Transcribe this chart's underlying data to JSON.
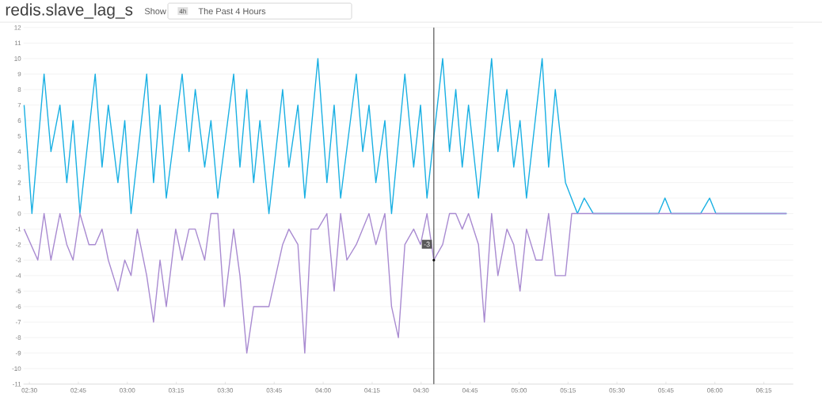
{
  "chart_data": {
    "type": "line",
    "title": "redis.slave_lag_s",
    "annotations": [
      "Show",
      "4h",
      "The Past 4 Hours",
      {
        "text": "-3",
        "x": 4.565,
        "y": -3
      }
    ],
    "xlim": [
      2.47,
      6.4
    ],
    "ylim": [
      -11,
      12
    ],
    "xticks": [
      {
        "value": 2.5,
        "label": "02:30"
      },
      {
        "value": 2.75,
        "label": "02:45"
      },
      {
        "value": 3.0,
        "label": "03:00"
      },
      {
        "value": 3.25,
        "label": "03:15"
      },
      {
        "value": 3.5,
        "label": "03:30"
      },
      {
        "value": 3.75,
        "label": "03:45"
      },
      {
        "value": 4.0,
        "label": "04:00"
      },
      {
        "value": 4.25,
        "label": "04:15"
      },
      {
        "value": 4.5,
        "label": "04:30"
      },
      {
        "value": 4.75,
        "label": "04:45"
      },
      {
        "value": 5.0,
        "label": "05:00"
      },
      {
        "value": 5.25,
        "label": "05:15"
      },
      {
        "value": 5.5,
        "label": "05:30"
      },
      {
        "value": 5.75,
        "label": "05:45"
      },
      {
        "value": 6.0,
        "label": "06:00"
      },
      {
        "value": 6.25,
        "label": "06:15"
      }
    ],
    "yticks": [
      -11,
      -10,
      -9,
      -8,
      -7,
      -6,
      -5,
      -4,
      -3,
      -2,
      -1,
      0,
      1,
      2,
      3,
      4,
      5,
      6,
      7,
      8,
      9,
      10,
      11,
      12
    ],
    "grid": "y",
    "marker": "none",
    "line_style": "solid",
    "ref_lines": [
      {
        "axis": "x",
        "value": 4.565,
        "color": "#333333"
      }
    ],
    "series": [
      {
        "color": "#1ab0e3",
        "x": [
          2.473,
          2.513,
          2.575,
          2.61,
          2.656,
          2.691,
          2.723,
          2.758,
          2.836,
          2.871,
          2.903,
          2.952,
          2.987,
          3.019,
          3.099,
          3.134,
          3.167,
          3.199,
          3.28,
          3.315,
          3.347,
          3.395,
          3.427,
          3.462,
          3.543,
          3.575,
          3.61,
          3.645,
          3.677,
          3.723,
          3.793,
          3.825,
          3.871,
          3.906,
          3.973,
          4.019,
          4.056,
          4.089,
          4.169,
          4.202,
          4.234,
          4.269,
          4.315,
          4.349,
          4.417,
          4.462,
          4.497,
          4.53,
          4.61,
          4.645,
          4.677,
          4.71,
          4.742,
          4.793,
          4.86,
          4.892,
          4.938,
          4.973,
          5.005,
          5.038,
          5.118,
          5.151,
          5.185,
          5.237,
          5.298,
          5.333,
          5.379,
          5.712,
          5.745,
          5.777,
          5.927,
          5.973,
          6.005,
          6.366
        ],
        "values": [
          7,
          0,
          9,
          4,
          7,
          2,
          6,
          0,
          9,
          3,
          7,
          2,
          6,
          0,
          9,
          2,
          7,
          1,
          9,
          4,
          8,
          3,
          6,
          1,
          9,
          3,
          8,
          2,
          6,
          0,
          8,
          3,
          7,
          1,
          10,
          2,
          7,
          1,
          9,
          4,
          7,
          2,
          6,
          0,
          9,
          3,
          7,
          1,
          10,
          4,
          8,
          3,
          7,
          1,
          10,
          4,
          8,
          3,
          6,
          1,
          10,
          3,
          8,
          2,
          0,
          1,
          0,
          0,
          1,
          0,
          0,
          1,
          0,
          0
        ]
      },
      {
        "color": "#a98bd1",
        "x": [
          2.473,
          2.543,
          2.575,
          2.61,
          2.656,
          2.691,
          2.723,
          2.758,
          2.804,
          2.836,
          2.871,
          2.903,
          2.952,
          2.987,
          3.019,
          3.051,
          3.099,
          3.134,
          3.167,
          3.199,
          3.247,
          3.28,
          3.315,
          3.347,
          3.395,
          3.427,
          3.462,
          3.495,
          3.543,
          3.575,
          3.61,
          3.645,
          3.723,
          3.793,
          3.825,
          3.871,
          3.906,
          3.938,
          3.973,
          4.019,
          4.056,
          4.089,
          4.121,
          4.169,
          4.234,
          4.269,
          4.315,
          4.349,
          4.384,
          4.417,
          4.462,
          4.497,
          4.53,
          4.565,
          4.61,
          4.645,
          4.677,
          4.71,
          4.742,
          4.793,
          4.823,
          4.86,
          4.892,
          4.938,
          4.973,
          5.005,
          5.038,
          5.086,
          5.118,
          5.151,
          5.185,
          5.237,
          5.269,
          6.366
        ],
        "values": [
          -1,
          -3,
          0,
          -3,
          0,
          -2,
          -3,
          0,
          -2,
          -2,
          -1,
          -3,
          -5,
          -3,
          -4,
          -1,
          -4,
          -7,
          -3,
          -6,
          -1,
          -3,
          -1,
          -1,
          -3,
          0,
          0,
          -6,
          -1,
          -4,
          -9,
          -6,
          -6,
          -2,
          -1,
          -2,
          -9,
          -1,
          -1,
          0,
          -5,
          0,
          -3,
          -2,
          0,
          -2,
          0,
          -6,
          -8,
          -2,
          -1,
          -2,
          0,
          -3,
          -2,
          0,
          0,
          -1,
          0,
          -2,
          -7,
          0,
          -4,
          -1,
          -2,
          -5,
          -1,
          -3,
          -3,
          0,
          -4,
          -4,
          0,
          0
        ]
      }
    ]
  }
}
